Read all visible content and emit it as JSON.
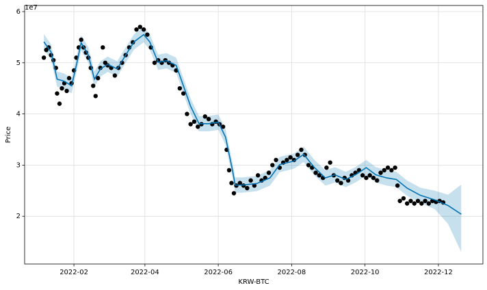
{
  "chart_data": {
    "type": "forecast",
    "xlabel": "KRW-BTC",
    "ylabel": "Price",
    "y_scale_label": "1e7",
    "xlim": [
      -10,
      371
    ],
    "ylim": [
      1.067,
      6.12
    ],
    "xticks": [
      {
        "value": 31,
        "label": "2022-02"
      },
      {
        "value": 90,
        "label": "2022-04"
      },
      {
        "value": 151,
        "label": "2022-06"
      },
      {
        "value": 212,
        "label": "2022-08"
      },
      {
        "value": 273,
        "label": "2022-10"
      },
      {
        "value": 334,
        "label": "2022-12"
      }
    ],
    "yticks": [
      2,
      3,
      4,
      5,
      6
    ],
    "grid": true,
    "series": [
      {
        "type": "band",
        "color": "#0072B2",
        "x": [
          6,
          12,
          17,
          23,
          29,
          33,
          37,
          43,
          48,
          53,
          59,
          67,
          74,
          81,
          89,
          94,
          101,
          108,
          116,
          122,
          128,
          135,
          143,
          151,
          157,
          163,
          165,
          171,
          183,
          194,
          202,
          214,
          222,
          231,
          240,
          248,
          257,
          265,
          274,
          282,
          291,
          299,
          308,
          319,
          331,
          342,
          353
        ],
        "upper": [
          5.56,
          5.36,
          4.83,
          4.79,
          4.7,
          5.1,
          5.54,
          5.3,
          4.83,
          5.03,
          5.12,
          5.03,
          5.3,
          5.56,
          5.7,
          5.56,
          5.16,
          5.19,
          5.1,
          4.7,
          4.3,
          3.96,
          3.96,
          3.99,
          3.7,
          3.03,
          2.76,
          2.76,
          2.79,
          2.9,
          3.16,
          3.23,
          3.36,
          3.1,
          2.9,
          2.96,
          2.87,
          2.96,
          3.1,
          2.96,
          2.9,
          2.87,
          2.7,
          2.56,
          2.5,
          2.42,
          2.62
        ],
        "lower": [
          5.26,
          5.06,
          4.53,
          4.49,
          4.4,
          4.8,
          5.24,
          5.0,
          4.53,
          4.73,
          4.82,
          4.73,
          5.0,
          5.26,
          5.4,
          5.26,
          4.86,
          4.89,
          4.8,
          4.4,
          4.0,
          3.66,
          3.66,
          3.69,
          3.4,
          2.73,
          2.46,
          2.46,
          2.49,
          2.6,
          2.86,
          2.93,
          3.06,
          2.8,
          2.6,
          2.66,
          2.57,
          2.66,
          2.8,
          2.66,
          2.6,
          2.57,
          2.4,
          2.26,
          2.14,
          1.85,
          1.3
        ]
      },
      {
        "type": "scatter",
        "color": "#000000",
        "x": [
          6,
          8,
          10,
          12,
          14,
          16,
          17,
          19,
          21,
          23,
          25,
          27,
          29,
          31,
          33,
          35,
          37,
          39,
          41,
          43,
          45,
          47,
          49,
          51,
          53,
          55,
          57,
          59,
          62,
          65,
          68,
          71,
          74,
          77,
          80,
          83,
          86,
          89,
          92,
          95,
          98,
          101,
          104,
          107,
          110,
          113,
          116,
          119,
          122,
          125,
          128,
          131,
          134,
          137,
          140,
          143,
          146,
          149,
          152,
          155,
          158,
          160,
          162,
          164,
          166,
          169,
          172,
          175,
          178,
          181,
          184,
          187,
          190,
          193,
          196,
          199,
          202,
          205,
          208,
          211,
          214,
          217,
          220,
          223,
          226,
          229,
          232,
          235,
          238,
          241,
          244,
          247,
          250,
          253,
          256,
          259,
          262,
          265,
          268,
          271,
          274,
          277,
          280,
          283,
          286,
          289,
          292,
          295,
          298,
          300,
          302,
          305,
          308,
          311,
          314,
          317,
          320,
          323,
          326,
          329,
          332,
          335,
          338
        ],
        "values": [
          5.1,
          5.25,
          5.3,
          5.15,
          5.05,
          4.9,
          4.4,
          4.2,
          4.5,
          4.6,
          4.45,
          4.7,
          4.6,
          4.85,
          5.1,
          5.3,
          5.45,
          5.3,
          5.2,
          5.1,
          4.9,
          4.55,
          4.35,
          4.7,
          4.9,
          5.3,
          5.0,
          4.95,
          4.9,
          4.75,
          4.9,
          5.0,
          5.15,
          5.3,
          5.4,
          5.65,
          5.7,
          5.65,
          5.55,
          5.3,
          5.0,
          5.05,
          5.0,
          5.05,
          5.0,
          4.95,
          4.85,
          4.5,
          4.4,
          4.0,
          3.8,
          3.85,
          3.75,
          3.8,
          3.95,
          3.9,
          3.8,
          3.85,
          3.8,
          3.75,
          3.3,
          2.9,
          2.65,
          2.45,
          2.6,
          2.65,
          2.6,
          2.55,
          2.7,
          2.6,
          2.8,
          2.7,
          2.75,
          2.85,
          3.0,
          3.1,
          2.95,
          3.05,
          3.1,
          3.15,
          3.1,
          3.2,
          3.3,
          3.2,
          3.0,
          2.95,
          2.85,
          2.8,
          2.75,
          2.95,
          3.05,
          2.8,
          2.7,
          2.65,
          2.75,
          2.7,
          2.8,
          2.85,
          2.9,
          2.8,
          2.75,
          2.8,
          2.75,
          2.7,
          2.85,
          2.9,
          2.95,
          2.9,
          2.95,
          2.6,
          2.3,
          2.35,
          2.25,
          2.3,
          2.25,
          2.3,
          2.25,
          2.3,
          2.25,
          2.3,
          2.28,
          2.3,
          2.27
        ]
      },
      {
        "type": "line",
        "color": "#0072B2",
        "x": [
          6,
          12,
          17,
          23,
          29,
          33,
          37,
          43,
          48,
          53,
          59,
          67,
          74,
          81,
          89,
          94,
          101,
          108,
          116,
          122,
          128,
          135,
          143,
          151,
          157,
          163,
          165,
          171,
          183,
          194,
          202,
          214,
          222,
          231,
          240,
          248,
          257,
          265,
          274,
          282,
          291,
          299,
          308,
          319,
          331,
          342,
          353
        ],
        "values": [
          5.41,
          5.21,
          4.68,
          4.64,
          4.55,
          4.95,
          5.39,
          5.15,
          4.68,
          4.88,
          4.97,
          4.88,
          5.15,
          5.41,
          5.55,
          5.41,
          5.01,
          5.04,
          4.95,
          4.55,
          4.15,
          3.81,
          3.81,
          3.84,
          3.55,
          2.88,
          2.61,
          2.61,
          2.64,
          2.75,
          3.01,
          3.08,
          3.21,
          2.95,
          2.75,
          2.81,
          2.72,
          2.81,
          2.95,
          2.81,
          2.75,
          2.72,
          2.55,
          2.41,
          2.32,
          2.21,
          2.04
        ]
      }
    ]
  }
}
